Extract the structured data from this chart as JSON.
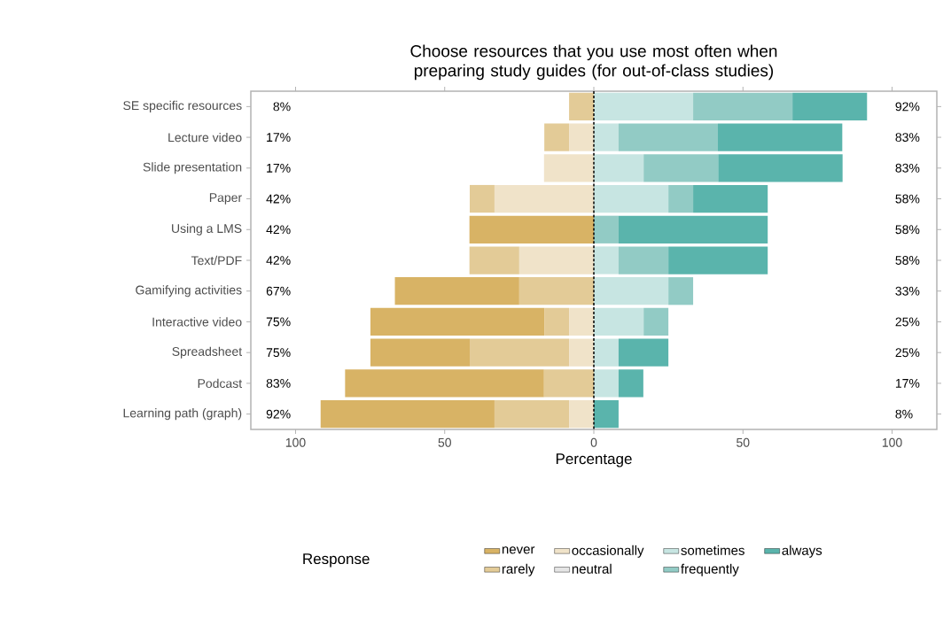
{
  "chart_data": {
    "type": "bar",
    "orientation": "horizontal",
    "stacked": true,
    "title": "Choose resources that you use most often when preparing study guides (for out-of-class studies)",
    "xlabel": "Percentage",
    "legend_title": "Response",
    "legend": "bottom",
    "grid": false,
    "categories": [
      "SE specific resources",
      "Lecture video",
      "Slide presentation",
      "Paper",
      "Using a LMS",
      "Text/PDF",
      "Gamifying activities",
      "Interactive video",
      "Spreadsheet",
      "Podcast",
      "Learning path (graph)"
    ],
    "xlim": [
      -115,
      115
    ],
    "xticks": [
      {
        "value": -100,
        "label": "100"
      },
      {
        "value": -50,
        "label": "50"
      },
      0,
      50,
      100
    ],
    "series": [
      {
        "name": "occasionally",
        "color": "#f0e3c9",
        "values": [
          0,
          -8.3,
          -16.7,
          -33.3,
          0,
          -25,
          0,
          -8.3,
          -8.3,
          0,
          -8.3
        ]
      },
      {
        "name": "rarely",
        "color": "#e3cb97",
        "values": [
          -8.3,
          -8.3,
          0,
          -8.3,
          0,
          -16.7,
          -25,
          -8.3,
          -33.3,
          -16.7,
          -25
        ]
      },
      {
        "name": "never",
        "color": "#d8b365",
        "values": [
          0,
          0,
          0,
          0,
          -41.7,
          0,
          -41.7,
          -58.3,
          -33.3,
          -66.7,
          -58.3
        ]
      },
      {
        "name": "neutral",
        "color": "#e5e5e5",
        "values": [
          0,
          0,
          0,
          0,
          0,
          0,
          0,
          0,
          0,
          0,
          0
        ]
      },
      {
        "name": "sometimes",
        "color": "#c7e5e2",
        "values": [
          33.3,
          8.3,
          16.7,
          25,
          0,
          8.3,
          25,
          16.7,
          8.3,
          8.3,
          0
        ]
      },
      {
        "name": "frequently",
        "color": "#92cbc5",
        "values": [
          33.3,
          33.3,
          25,
          8.3,
          8.3,
          16.7,
          8.3,
          8.3,
          0,
          0,
          0
        ]
      },
      {
        "name": "always",
        "color": "#5ab4ac",
        "values": [
          25,
          41.7,
          41.7,
          25,
          50,
          33.3,
          0,
          0,
          16.7,
          8.3,
          8.3
        ]
      }
    ],
    "ref_lines": [
      {
        "axis": "x",
        "value": 0,
        "color": "#000000",
        "line_style": "dashed"
      }
    ],
    "annotations": [
      "8%",
      "17%",
      "17%",
      "42%",
      "42%",
      "42%",
      "67%",
      "75%",
      "75%",
      "83%",
      "92%",
      "92%",
      "83%",
      "83%",
      "58%",
      "58%",
      "58%",
      "33%",
      "25%",
      "25%",
      "17%",
      "8%"
    ]
  }
}
